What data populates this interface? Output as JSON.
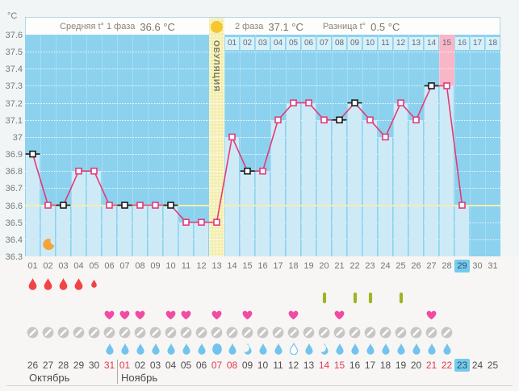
{
  "header": {
    "unit_label": "°C",
    "phase1_label": "Средняя t° 1 фаза",
    "phase1_value": "36.6 °C",
    "ovulation_label": "ОВУЛЯЦИЯ",
    "phase2_label": "2 фаза",
    "phase2_value": "37.1 °C",
    "diff_label": "Разница t°",
    "diff_value": "0.5 °C"
  },
  "chart_data": {
    "type": "line",
    "ylabel": "°C",
    "ylim": [
      36.3,
      37.6
    ],
    "ytick_labels": [
      "37.6",
      "37.5",
      "37.4",
      "37.3",
      "37.2",
      "37.1",
      "37",
      "36.9",
      "36.8",
      "36.7",
      "36.6",
      "36.5",
      "36.4",
      "36.3"
    ],
    "grid": "horizontal dotted every 0.1",
    "cycle_days": [
      "01",
      "02",
      "03",
      "04",
      "05",
      "06",
      "07",
      "08",
      "09",
      "10",
      "11",
      "12",
      "13",
      "14",
      "15",
      "16",
      "17",
      "18",
      "19",
      "20",
      "21",
      "22",
      "23",
      "24",
      "25",
      "26",
      "27",
      "28",
      "29",
      "30",
      "31"
    ],
    "temps": [
      36.9,
      36.6,
      36.6,
      36.8,
      36.8,
      36.6,
      36.6,
      36.6,
      36.6,
      36.6,
      36.5,
      36.5,
      36.5,
      37.0,
      36.8,
      36.8,
      37.1,
      37.2,
      37.2,
      37.1,
      37.1,
      37.2,
      37.1,
      37.0,
      37.2,
      37.1,
      37.3,
      37.3,
      36.6,
      null,
      null
    ],
    "black_marker_days": [
      1,
      3,
      7,
      10,
      15,
      21,
      22,
      27
    ],
    "ovulation_day": 13,
    "pink_highlight_day": 28,
    "today_cycle_day": "29",
    "average_line": 36.6,
    "moon_day": 2,
    "phase2_day_labels": [
      "01",
      "02",
      "03",
      "04",
      "05",
      "06",
      "07",
      "08",
      "09",
      "10",
      "11",
      "12",
      "13",
      "14",
      "15",
      "16",
      "17",
      "18"
    ],
    "phase2_pink_label": "15"
  },
  "rows": {
    "menstruation_days": [
      1,
      2,
      3,
      4
    ],
    "menstruation_small_days": [
      5
    ],
    "medication_days": [
      20,
      22,
      23,
      25
    ],
    "intimacy_days": [
      6,
      7,
      8,
      10,
      11,
      13,
      15,
      18,
      21,
      27
    ],
    "pill_days": [
      1,
      2,
      3,
      4,
      5,
      6,
      7,
      8,
      9,
      10,
      11,
      12,
      13,
      14,
      15,
      16,
      17,
      18,
      19,
      20,
      21,
      22,
      23,
      24,
      25,
      26,
      27,
      28
    ],
    "fluid_days": [
      6,
      7,
      8,
      9,
      10,
      11,
      12,
      13,
      14,
      15,
      16,
      17,
      18,
      19,
      20,
      21,
      22,
      23,
      24,
      25,
      26,
      27,
      28
    ],
    "fluid_big_days": [
      13
    ],
    "fluid_crescent_days": [
      15,
      20
    ],
    "fluid_outline_days": [
      18
    ]
  },
  "calendar": {
    "dates": [
      "26",
      "27",
      "28",
      "29",
      "30",
      "31",
      "01",
      "02",
      "03",
      "04",
      "05",
      "06",
      "07",
      "08",
      "09",
      "10",
      "11",
      "12",
      "13",
      "14",
      "15",
      "16",
      "17",
      "18",
      "19",
      "20",
      "21",
      "22",
      "23",
      "24",
      "25"
    ],
    "red_indices": [
      5,
      6,
      12,
      13,
      19,
      20,
      26,
      27
    ],
    "today_index": 28,
    "month1": "Октябрь",
    "month2": "Ноябрь"
  },
  "colors": {
    "line": "#e23a78",
    "marker_black": "#1b1b1b",
    "plot_bg": "#8cd2ee",
    "fill": "#cfeaf7",
    "ovulation_band": "#f3eeae",
    "pink_band": "#f9b6c6",
    "avg_line": "#f4efaa",
    "weekend_red": "#e23b50",
    "today_badge": "#74cbed",
    "blood": "#f04545",
    "heart": "#f24ba4",
    "capsule": "#a0b421",
    "pill": "#c6c6c6",
    "water": "#72c3ee",
    "moon": "#f3a53a",
    "ovulation_dot": "#f6c62f"
  }
}
